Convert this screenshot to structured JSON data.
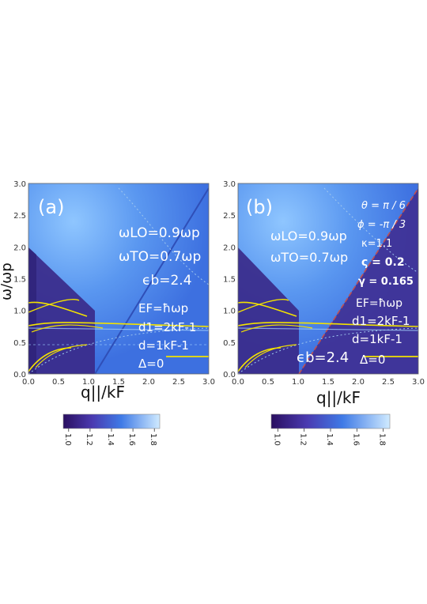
{
  "chart_data": [
    {
      "type": "heatmap",
      "panel_label": "(a)",
      "xlabel": "q||/kF",
      "ylabel": "ω/ωp",
      "xlim": [
        0,
        3
      ],
      "ylim": [
        0,
        3
      ],
      "x_ticks": [
        "0.0",
        "0.5",
        "1.0",
        "1.5",
        "2.0",
        "2.5",
        "3.0"
      ],
      "y_ticks": [
        "0.0",
        "0.5",
        "1.0",
        "1.5",
        "2.0",
        "2.5",
        "3.0"
      ],
      "annotations": [
        "ωLO=0.9ωp",
        "ωTO=0.7ωp",
        "ϵb=2.4",
        "EF=ħωp",
        "d1=2kF-1",
        "d=1kF-1",
        "Δ=0"
      ],
      "colorbar": {
        "ticks": [
          "1.0",
          "1.2",
          "1.4",
          "1.6",
          "1.8"
        ],
        "range": [
          0.95,
          1.85
        ]
      }
    },
    {
      "type": "heatmap",
      "panel_label": "(b)",
      "xlabel": "q||/kF",
      "ylabel": "",
      "xlim": [
        0,
        3
      ],
      "ylim": [
        0,
        3
      ],
      "x_ticks": [
        "0.0",
        "0.5",
        "1.0",
        "1.5",
        "2.0",
        "2.5",
        "3.0"
      ],
      "y_ticks": [
        "0.0",
        "0.5",
        "1.0",
        "1.5",
        "2.0",
        "2.5",
        "3.0"
      ],
      "annotations": [
        "θ = π / 6",
        "ϕ = -π / 3",
        "κ=1.1",
        "ς = 0.2",
        "γ = 0.165",
        "ωLO=0.9ωp",
        "ωTO=0.7ωp",
        "EF=ħωp",
        "d1=2kF-1",
        "d=1kF-1",
        "ϵb=2.4",
        "Δ=0"
      ],
      "colorbar": {
        "ticks": [
          "1.0",
          "1.2",
          "1.4",
          "1.6",
          "1.8"
        ],
        "range": [
          0.95,
          1.85
        ]
      }
    }
  ],
  "colors": {
    "background": "#3a6fe0",
    "dark_region": "#3a2a8a",
    "curves": "#f2e200",
    "highlight": "#9fd0ff"
  }
}
